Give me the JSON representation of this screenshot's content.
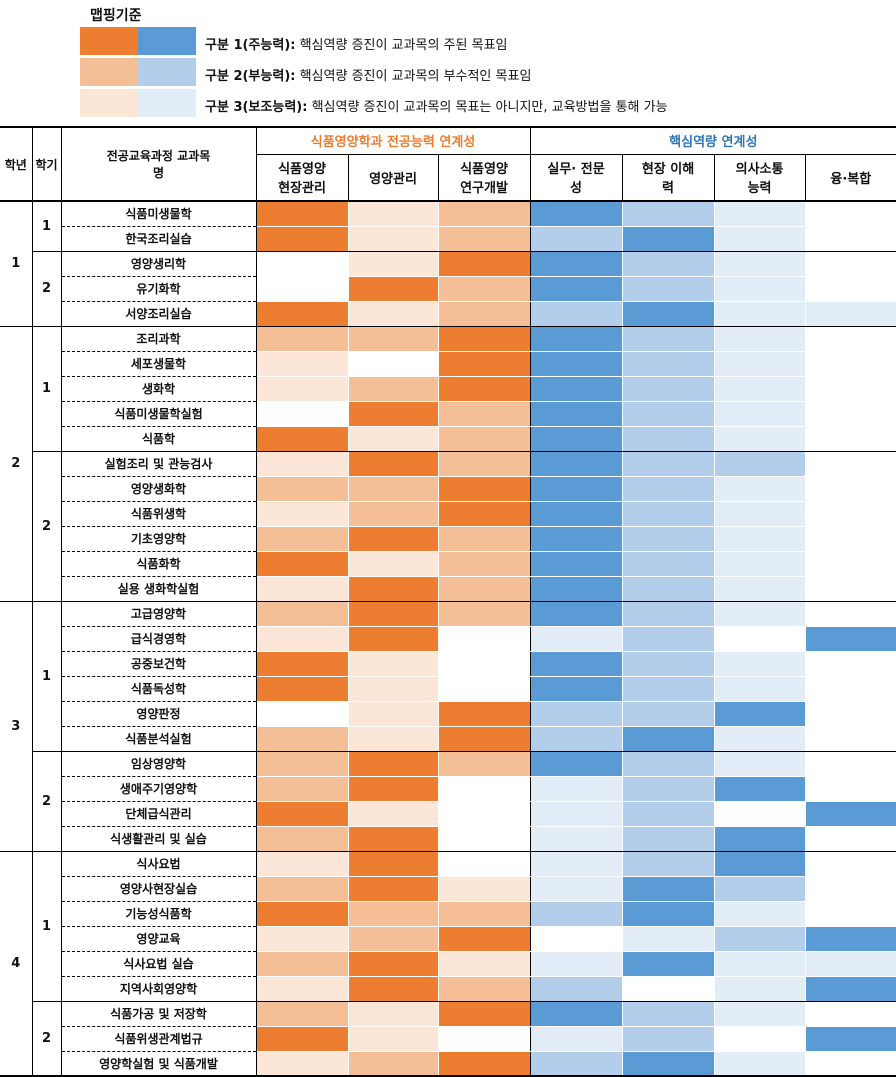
{
  "legend": {
    "title": "맵핑기준",
    "items": [
      {
        "label": "구분 1(주능력):",
        "desc": "핵심역량 증진이 교과목의 주된 목표임"
      },
      {
        "label": "구분 2(부능력):",
        "desc": "핵심역량 증진이 교과목의 부수적인 목표임"
      },
      {
        "label": "구분 3(보조능력):",
        "desc": "핵심역량 증진이 교과목의 목표는 아니지만, 교육방법을 통해 가능"
      }
    ]
  },
  "colors": {
    "orange": [
      "#ffffff",
      "#FCE6D8",
      "#F4BE96",
      "#ED7D31"
    ],
    "blue": [
      "#ffffff",
      "#E3EDF8",
      "#B3CEEA",
      "#5B9BD5"
    ]
  },
  "headers": {
    "year": "학년",
    "semester": "학기",
    "course": "전공교육과정 교과목명",
    "group_major": "식품영양학과 전공능력 연계성",
    "group_core": "핵심역량 연계성",
    "major_cols": [
      "식품영양 현장관리",
      "영양관리",
      "식품영양 연구개발"
    ],
    "core_cols": [
      "실무· 전문성",
      "현장 이해력",
      "의사소통 능력",
      "융·복합"
    ]
  },
  "years": [
    {
      "year": "1",
      "semesters": [
        {
          "sem": "1",
          "courses": [
            {
              "name": "식품미생물학",
              "m": [
                3,
                1,
                2
              ],
              "c": [
                3,
                2,
                1,
                0
              ]
            },
            {
              "name": "한국조리실습",
              "m": [
                3,
                1,
                2
              ],
              "c": [
                2,
                3,
                1,
                0
              ]
            }
          ]
        },
        {
          "sem": "2",
          "courses": [
            {
              "name": "영양생리학",
              "m": [
                0,
                1,
                3
              ],
              "c": [
                3,
                2,
                1,
                0
              ]
            },
            {
              "name": "유기화학",
              "m": [
                0,
                3,
                2
              ],
              "c": [
                3,
                2,
                1,
                0
              ]
            },
            {
              "name": "서양조리실습",
              "m": [
                3,
                1,
                2
              ],
              "c": [
                2,
                3,
                1,
                1
              ]
            }
          ]
        }
      ]
    },
    {
      "year": "2",
      "semesters": [
        {
          "sem": "1",
          "courses": [
            {
              "name": "조리과학",
              "m": [
                2,
                2,
                3
              ],
              "c": [
                3,
                2,
                1,
                0
              ]
            },
            {
              "name": "세포생물학",
              "m": [
                1,
                0,
                3
              ],
              "c": [
                3,
                2,
                1,
                0
              ]
            },
            {
              "name": "생화학",
              "m": [
                1,
                2,
                3
              ],
              "c": [
                3,
                2,
                1,
                0
              ]
            },
            {
              "name": "식품미생물학실험",
              "m": [
                0,
                3,
                2
              ],
              "c": [
                3,
                2,
                1,
                0
              ]
            },
            {
              "name": "식품학",
              "m": [
                3,
                1,
                2
              ],
              "c": [
                3,
                2,
                1,
                0
              ]
            }
          ]
        },
        {
          "sem": "2",
          "courses": [
            {
              "name": "실험조리 및 관능검사",
              "m": [
                1,
                3,
                2
              ],
              "c": [
                3,
                2,
                2,
                0
              ]
            },
            {
              "name": "영양생화학",
              "m": [
                2,
                2,
                3
              ],
              "c": [
                3,
                2,
                1,
                0
              ]
            },
            {
              "name": "식품위생학",
              "m": [
                1,
                2,
                3
              ],
              "c": [
                3,
                2,
                1,
                0
              ]
            },
            {
              "name": "기초영양학",
              "m": [
                2,
                3,
                2
              ],
              "c": [
                3,
                2,
                1,
                0
              ]
            },
            {
              "name": "식품화학",
              "m": [
                3,
                1,
                2
              ],
              "c": [
                3,
                2,
                1,
                0
              ]
            },
            {
              "name": "실용 생화학실험",
              "m": [
                1,
                3,
                2
              ],
              "c": [
                3,
                2,
                1,
                0
              ]
            }
          ]
        }
      ]
    },
    {
      "year": "3",
      "semesters": [
        {
          "sem": "1",
          "courses": [
            {
              "name": "고급영양학",
              "m": [
                2,
                3,
                2
              ],
              "c": [
                3,
                2,
                1,
                0
              ]
            },
            {
              "name": "급식경영학",
              "m": [
                1,
                3,
                0
              ],
              "c": [
                1,
                2,
                0,
                3
              ]
            },
            {
              "name": "공중보건학",
              "m": [
                3,
                1,
                0
              ],
              "c": [
                3,
                2,
                1,
                0
              ]
            },
            {
              "name": "식품독성학",
              "m": [
                3,
                1,
                0
              ],
              "c": [
                3,
                2,
                1,
                0
              ]
            },
            {
              "name": "영양판정",
              "m": [
                0,
                1,
                3
              ],
              "c": [
                2,
                2,
                3,
                0
              ]
            },
            {
              "name": "식품분석실험",
              "m": [
                2,
                1,
                3
              ],
              "c": [
                2,
                3,
                1,
                0
              ]
            }
          ]
        },
        {
          "sem": "2",
          "courses": [
            {
              "name": "임상영양학",
              "m": [
                2,
                3,
                2
              ],
              "c": [
                3,
                2,
                1,
                0
              ]
            },
            {
              "name": "생애주기영양학",
              "m": [
                2,
                3,
                0
              ],
              "c": [
                1,
                2,
                3,
                0
              ]
            },
            {
              "name": "단체급식관리",
              "m": [
                3,
                1,
                0
              ],
              "c": [
                1,
                2,
                0,
                3
              ]
            },
            {
              "name": "식생활관리 및 실습",
              "m": [
                2,
                3,
                0
              ],
              "c": [
                1,
                2,
                3,
                0
              ]
            }
          ]
        }
      ]
    },
    {
      "year": "4",
      "semesters": [
        {
          "sem": "1",
          "courses": [
            {
              "name": "식사요법",
              "m": [
                1,
                3,
                0
              ],
              "c": [
                1,
                2,
                3,
                0
              ]
            },
            {
              "name": "영양사현장실습",
              "m": [
                2,
                3,
                1
              ],
              "c": [
                1,
                3,
                2,
                0
              ]
            },
            {
              "name": "기능성식품학",
              "m": [
                3,
                2,
                2
              ],
              "c": [
                2,
                3,
                1,
                0
              ]
            },
            {
              "name": "영양교육",
              "m": [
                1,
                2,
                3
              ],
              "c": [
                0,
                1,
                2,
                3
              ]
            },
            {
              "name": "식사요법 실습",
              "m": [
                2,
                3,
                1
              ],
              "c": [
                1,
                3,
                1,
                1
              ]
            },
            {
              "name": "지역사회영양학",
              "m": [
                1,
                3,
                2
              ],
              "c": [
                2,
                0,
                1,
                3
              ]
            }
          ]
        },
        {
          "sem": "2",
          "courses": [
            {
              "name": "식품가공 및 저장학",
              "m": [
                2,
                1,
                3
              ],
              "c": [
                3,
                2,
                1,
                0
              ]
            },
            {
              "name": "식품위생관계법규",
              "m": [
                3,
                1,
                0
              ],
              "c": [
                1,
                2,
                0,
                3
              ]
            },
            {
              "name": "영양학실험 및 식품개발",
              "m": [
                1,
                2,
                3
              ],
              "c": [
                2,
                3,
                1,
                0
              ]
            }
          ]
        }
      ]
    }
  ]
}
